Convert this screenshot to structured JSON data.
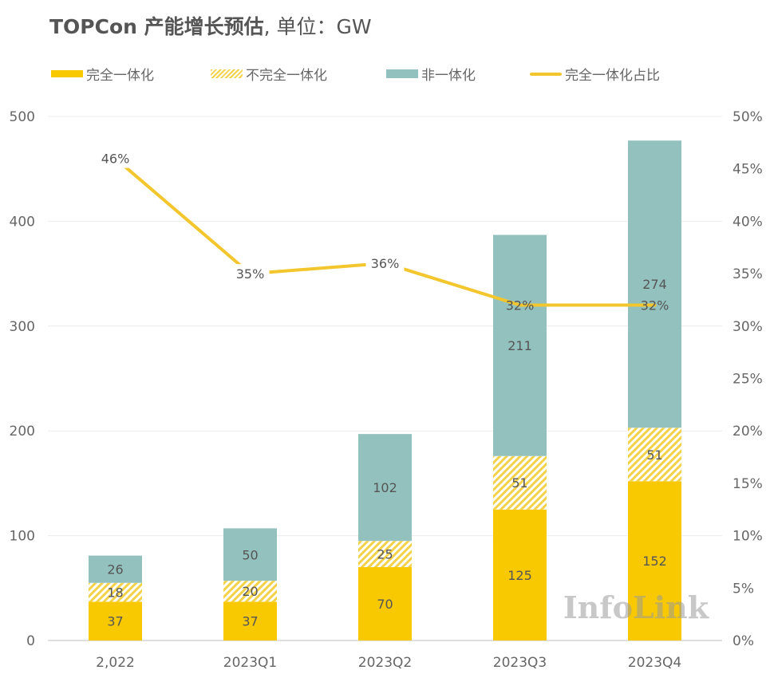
{
  "chart_data": {
    "type": "bar",
    "title_bold": "TOPCon 产能增长预估",
    "title_rest": ", 单位：GW",
    "categories": [
      "2,022",
      "2023Q1",
      "2023Q2",
      "2023Q3",
      "2023Q4"
    ],
    "series": [
      {
        "name": "完全一体化",
        "type": "bar",
        "values": [
          37,
          37,
          70,
          125,
          152
        ]
      },
      {
        "name": "不完全一体化",
        "type": "bar",
        "values": [
          18,
          20,
          25,
          51,
          51
        ]
      },
      {
        "name": "非一体化",
        "type": "bar",
        "values": [
          26,
          50,
          102,
          211,
          274
        ]
      },
      {
        "name": "完全一体化占比",
        "type": "line",
        "axis": "right",
        "values": [
          46,
          35,
          36,
          32,
          32
        ],
        "labels": [
          "46%",
          "35%",
          "36%",
          "32%",
          "32%"
        ]
      }
    ],
    "y_left": {
      "ylim": [
        0,
        500
      ],
      "ticks": [
        "0",
        "100",
        "200",
        "300",
        "400",
        "500"
      ]
    },
    "y_right": {
      "ylim": [
        0,
        50
      ],
      "ticks": [
        "0%",
        "5%",
        "10%",
        "15%",
        "20%",
        "25%",
        "30%",
        "35%",
        "40%",
        "45%",
        "50%"
      ]
    },
    "legend_position": "top-left",
    "grid": true,
    "watermark": "InfoLink",
    "colors": {
      "full": "#F8C800",
      "partial": "#F3D24A",
      "non": "#93C2BE",
      "line": "#F2C62C"
    }
  }
}
